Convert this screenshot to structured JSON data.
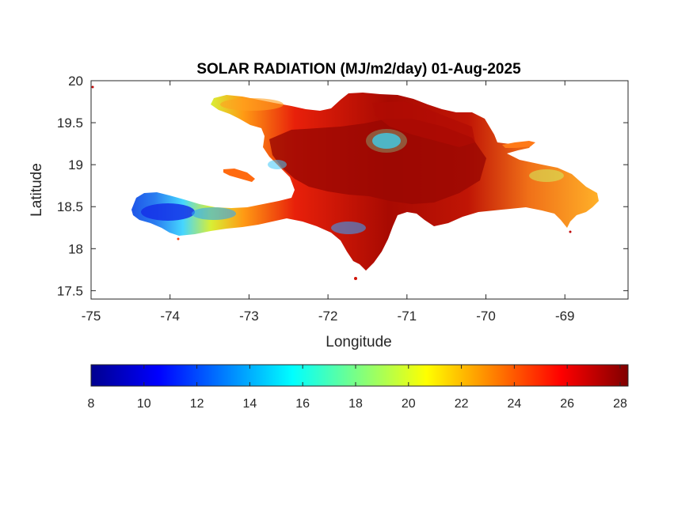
{
  "chart_data": {
    "type": "heatmap",
    "title": "SOLAR RADIATION (MJ/m2/day) 01-Aug-2025",
    "xlabel": "Longitude",
    "ylabel": "Latitude",
    "xlim": [
      -75,
      -68.2
    ],
    "ylim": [
      17.4,
      20
    ],
    "x_ticks": [
      "-75",
      "-74",
      "-73",
      "-72",
      "-71",
      "-70",
      "-69"
    ],
    "y_ticks": [
      "17.5",
      "18",
      "18.5",
      "19",
      "19.5",
      "20"
    ],
    "colormap": "jet",
    "colorbar": {
      "location": "bottom",
      "range": [
        8,
        28.3
      ],
      "ticks": [
        "8",
        "10",
        "12",
        "14",
        "16",
        "18",
        "20",
        "22",
        "24",
        "26",
        "28"
      ]
    },
    "region": "Hispaniola (Haiti and Dominican Republic)",
    "value_summary": {
      "min_approx": 9,
      "max_approx": 28,
      "typical_interior": 26,
      "southwest_peninsula_tip": 11,
      "northern_coast": 22
    }
  }
}
